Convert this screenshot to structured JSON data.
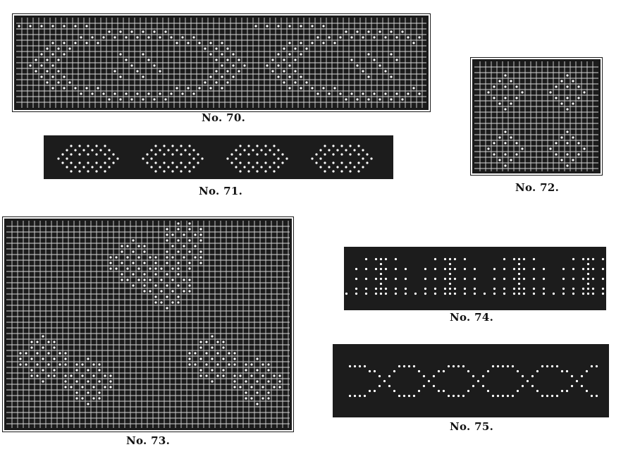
{
  "captions": {
    "p70": "No. 70.",
    "p71": "No. 71.",
    "p72": "No. 72.",
    "p73": "No. 73.",
    "p74": "No. 74.",
    "p75": "No. 75."
  },
  "colors": {
    "ground": "#1c1c1c",
    "grid": "#d8d8d8",
    "dot": "#ffffff"
  }
}
